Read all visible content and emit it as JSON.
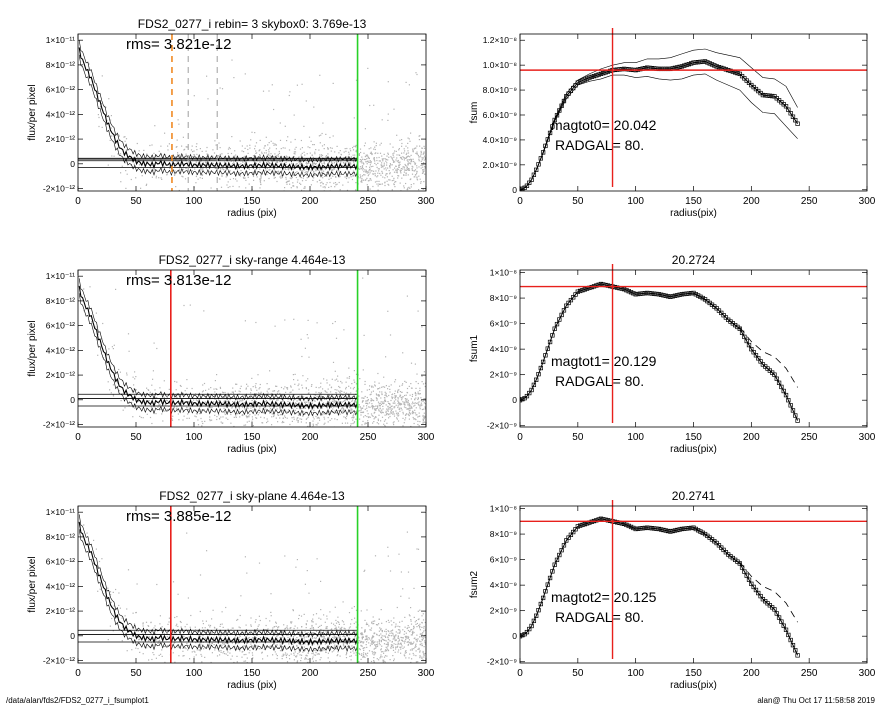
{
  "footer": {
    "left": "/data/alan/fds2/FDS2_0277_i_fsumplot1",
    "right": "alan@  Thu Oct 17 11:58:58 2019"
  },
  "colors": {
    "red": "#e8201c",
    "green": "#28d228",
    "orange": "#f08a24",
    "scatter": "#b4b4b4",
    "line": "#000000"
  },
  "chart_data": [
    {
      "type": "scatter",
      "title": "FDS2_0277_i rebin= 3    skybox0:  3.769e-13",
      "annotation": "rms= 3.821e-12",
      "xlabel": "radius (pix)",
      "ylabel": "flux/per pixel",
      "xlim": [
        0,
        300
      ],
      "ylim": [
        -2.2e-12,
        1.05e-11
      ],
      "xticks": [
        0,
        50,
        100,
        150,
        200,
        250,
        300
      ],
      "xtick_labels": [
        "0",
        "50",
        "100",
        "150",
        "200",
        "250",
        "300"
      ],
      "yticks": [
        -2e-12,
        0,
        2e-12,
        4e-12,
        6e-12,
        8e-12,
        1e-11
      ],
      "ytick_labels": [
        "-2×10⁻¹²",
        "0",
        "2×10⁻¹²",
        "4×10⁻¹²",
        "6×10⁻¹²",
        "8×10⁻¹²",
        "1×10⁻¹¹"
      ],
      "profile": {
        "x": [
          1,
          3,
          5,
          8,
          11,
          14,
          17,
          20,
          23,
          26,
          29,
          32,
          35,
          38,
          41,
          44,
          47,
          50,
          53,
          56,
          60,
          65,
          70,
          80,
          90,
          100,
          120,
          140,
          160,
          180,
          200,
          220,
          240
        ],
        "y": [
          9.2e-12,
          8.6e-12,
          8.1e-12,
          7.5e-12,
          7e-12,
          6.2e-12,
          5.4e-12,
          4.7e-12,
          3.9e-12,
          3.2e-12,
          2.6e-12,
          2e-12,
          1.5e-12,
          1.1e-12,
          8e-13,
          6e-13,
          4e-13,
          2e-13,
          1e-13,
          0,
          0,
          -1e-13,
          1e-13,
          -1e-13,
          0,
          -1e-13,
          -1e-13,
          -2e-13,
          -1e-13,
          -2e-13,
          -3e-13,
          -2e-13,
          -2e-13
        ]
      },
      "hlines": [
        4.5e-13,
        3.769e-13,
        2.5e-13,
        -3e-13
      ],
      "vlines": [
        {
          "x": 81,
          "color": "orange",
          "style": "dashed"
        },
        {
          "x": 95,
          "color": "gray",
          "style": "dashed"
        },
        {
          "x": 120,
          "color": "gray",
          "style": "dashed"
        },
        {
          "x": 241,
          "color": "green",
          "style": "solid"
        }
      ]
    },
    {
      "type": "line",
      "title": "",
      "annotation": [
        "magtot0=  20.042",
        "RADGAL=     80."
      ],
      "xlabel": "radius(pix)",
      "ylabel": "fsum",
      "xlim": [
        0,
        300
      ],
      "ylim": [
        -1e-10,
        1.25e-08
      ],
      "xticks": [
        0,
        50,
        100,
        150,
        200,
        250,
        300
      ],
      "xtick_labels": [
        "0",
        "50",
        "100",
        "150",
        "200",
        "250",
        "300"
      ],
      "yticks": [
        0,
        2e-09,
        4e-09,
        6e-09,
        8e-09,
        1e-08,
        1.2e-08
      ],
      "ytick_labels": [
        "0",
        "2.0×10⁻⁹",
        "4.0×10⁻⁹",
        "6.0×10⁻⁹",
        "8.0×10⁻⁹",
        "1.0×10⁻⁸",
        "1.2×10⁻⁸"
      ],
      "series": [
        {
          "style": "markers",
          "x": [
            0,
            5,
            10,
            15,
            20,
            25,
            30,
            40,
            50,
            60,
            70,
            80,
            90,
            100,
            110,
            120,
            130,
            140,
            150,
            160,
            170,
            180,
            190,
            200,
            210,
            220,
            230,
            240
          ],
          "y": [
            0,
            2e-10,
            8e-10,
            1.8e-09,
            3e-09,
            4.3e-09,
            5.6e-09,
            7.5e-09,
            8.6e-09,
            9e-09,
            9.3e-09,
            9.6e-09,
            9.7e-09,
            9.6e-09,
            9.8e-09,
            9.7e-09,
            9.7e-09,
            9.9e-09,
            1.02e-08,
            1.03e-08,
            9.9e-09,
            9.6e-09,
            9.3e-09,
            8.4e-09,
            7.6e-09,
            7.5e-09,
            6.7e-09,
            5.3e-09
          ]
        },
        {
          "style": "thin",
          "x": [
            0,
            5,
            10,
            15,
            20,
            25,
            30,
            40,
            50,
            60,
            70,
            80,
            90,
            100,
            110,
            120,
            130,
            140,
            150,
            160,
            170,
            180,
            190,
            200,
            210,
            220,
            230,
            240
          ],
          "y": [
            0,
            2e-10,
            8e-10,
            1.8e-09,
            3e-09,
            4.4e-09,
            5.7e-09,
            7.7e-09,
            8.8e-09,
            9.3e-09,
            9.7e-09,
            1e-08,
            1.02e-08,
            1.02e-08,
            1.05e-08,
            1.05e-08,
            1.06e-08,
            1.09e-08,
            1.12e-08,
            1.13e-08,
            1.1e-08,
            1.08e-08,
            1.06e-08,
            9.8e-09,
            9e-09,
            8.9e-09,
            8.3e-09,
            6.6e-09
          ]
        },
        {
          "style": "thin",
          "x": [
            0,
            5,
            10,
            15,
            20,
            25,
            30,
            40,
            50,
            60,
            70,
            80,
            90,
            100,
            110,
            120,
            130,
            140,
            150,
            160,
            170,
            180,
            190,
            200,
            210,
            220,
            230,
            240
          ],
          "y": [
            0,
            2e-10,
            8e-10,
            1.8e-09,
            2.9e-09,
            4.2e-09,
            5.5e-09,
            7.3e-09,
            8.4e-09,
            8.7e-09,
            8.9e-09,
            9.2e-09,
            9.2e-09,
            9e-09,
            9.1e-09,
            8.9e-09,
            8.8e-09,
            8.9e-09,
            9.2e-09,
            9.3e-09,
            8.8e-09,
            8.4e-09,
            8e-09,
            7e-09,
            6.2e-09,
            6.1e-09,
            5.1e-09,
            4.1e-09
          ]
        }
      ],
      "hline": 9.6e-09,
      "vline": 80
    },
    {
      "type": "scatter",
      "title": "FDS2_0277_i sky-range  4.464e-13",
      "annotation": "rms= 3.813e-12",
      "xlabel": "radius (pix)",
      "ylabel": "flux/per pixel",
      "xlim": [
        0,
        300
      ],
      "ylim": [
        -2.2e-12,
        1.05e-11
      ],
      "xticks": [
        0,
        50,
        100,
        150,
        200,
        250,
        300
      ],
      "xtick_labels": [
        "0",
        "50",
        "100",
        "150",
        "200",
        "250",
        "300"
      ],
      "yticks": [
        -2e-12,
        0,
        2e-12,
        4e-12,
        6e-12,
        8e-12,
        1e-11
      ],
      "ytick_labels": [
        "-2×10⁻¹²",
        "0",
        "2×10⁻¹²",
        "4×10⁻¹²",
        "6×10⁻¹²",
        "8×10⁻¹²",
        "1×10⁻¹¹"
      ],
      "profile": {
        "x": [
          1,
          3,
          5,
          8,
          11,
          14,
          17,
          20,
          23,
          26,
          29,
          32,
          35,
          38,
          41,
          44,
          47,
          50,
          53,
          56,
          60,
          65,
          70,
          80,
          90,
          100,
          120,
          140,
          160,
          180,
          200,
          220,
          240
        ],
        "y": [
          9e-12,
          8.4e-12,
          7.9e-12,
          7.3e-12,
          6.8e-12,
          6e-12,
          5.2e-12,
          4.5e-12,
          3.7e-12,
          3e-12,
          2.4e-12,
          1.8e-12,
          1.3e-12,
          9e-13,
          6e-13,
          4e-13,
          2e-13,
          0,
          -1e-13,
          -2e-13,
          -2e-13,
          -3e-13,
          -1e-13,
          -3e-13,
          -2e-13,
          -3e-13,
          -3e-13,
          -4e-13,
          -3e-13,
          -4e-13,
          -5e-13,
          -4e-13,
          -4e-13
        ]
      },
      "hlines": [
        4.464e-13,
        1e-13,
        -5e-13
      ],
      "vlines": [
        {
          "x": 80,
          "color": "red",
          "style": "solid"
        },
        {
          "x": 241,
          "color": "green",
          "style": "solid"
        }
      ]
    },
    {
      "type": "line",
      "title": "20.2724",
      "annotation": [
        "magtot1=  20.129",
        "RADGAL=     80."
      ],
      "xlabel": "radius(pix)",
      "ylabel": "fsum1",
      "xlim": [
        0,
        300
      ],
      "ylim": [
        -2.1e-09,
        1.02e-08
      ],
      "xticks": [
        0,
        50,
        100,
        150,
        200,
        250,
        300
      ],
      "xtick_labels": [
        "0",
        "50",
        "100",
        "150",
        "200",
        "250",
        "300"
      ],
      "yticks": [
        -2e-09,
        0,
        2e-09,
        4e-09,
        6e-09,
        8e-09,
        1e-08
      ],
      "ytick_labels": [
        "-2×10⁻⁹",
        "0",
        "2×10⁻⁹",
        "4×10⁻⁹",
        "6×10⁻⁹",
        "8×10⁻⁹",
        "1×10⁻⁸"
      ],
      "series": [
        {
          "style": "markers",
          "x": [
            0,
            5,
            10,
            15,
            20,
            25,
            30,
            40,
            50,
            60,
            70,
            80,
            90,
            100,
            110,
            120,
            130,
            140,
            150,
            160,
            170,
            180,
            190,
            200,
            210,
            220,
            230,
            240
          ],
          "y": [
            0,
            2e-10,
            8e-10,
            1.8e-09,
            3e-09,
            4.3e-09,
            5.6e-09,
            7.4e-09,
            8.5e-09,
            8.8e-09,
            9.1e-09,
            8.9e-09,
            8.7e-09,
            8.3e-09,
            8.4e-09,
            8.3e-09,
            8.1e-09,
            8.3e-09,
            8.4e-09,
            7.9e-09,
            7.2e-09,
            6.3e-09,
            5.6e-09,
            4e-09,
            2.8e-09,
            2e-09,
            4e-10,
            -1.6e-09
          ]
        },
        {
          "style": "dashed",
          "x": [
            190,
            200,
            210,
            220,
            230,
            240
          ],
          "y": [
            5.7e-09,
            4.6e-09,
            3.8e-09,
            3.4e-09,
            2.5e-09,
            1e-09
          ]
        }
      ],
      "hline": 8.9e-09,
      "vline": 80
    },
    {
      "type": "scatter",
      "title": "FDS2_0277_i sky-plane  4.464e-13",
      "annotation": "rms= 3.885e-12",
      "xlabel": "radius (pix)",
      "ylabel": "flux/per pixel",
      "xlim": [
        0,
        300
      ],
      "ylim": [
        -2.2e-12,
        1.05e-11
      ],
      "xticks": [
        0,
        50,
        100,
        150,
        200,
        250,
        300
      ],
      "xtick_labels": [
        "0",
        "50",
        "100",
        "150",
        "200",
        "250",
        "300"
      ],
      "yticks": [
        -2e-12,
        0,
        2e-12,
        4e-12,
        6e-12,
        8e-12,
        1e-11
      ],
      "ytick_labels": [
        "-2×10⁻¹²",
        "0",
        "2×10⁻¹²",
        "4×10⁻¹²",
        "6×10⁻¹²",
        "8×10⁻¹²",
        "1×10⁻¹¹"
      ],
      "profile": {
        "x": [
          1,
          3,
          5,
          8,
          11,
          14,
          17,
          20,
          23,
          26,
          29,
          32,
          35,
          38,
          41,
          44,
          47,
          50,
          53,
          56,
          60,
          65,
          70,
          80,
          90,
          100,
          120,
          140,
          160,
          180,
          200,
          220,
          240
        ],
        "y": [
          9e-12,
          8.4e-12,
          7.9e-12,
          7.3e-12,
          6.8e-12,
          6e-12,
          5.2e-12,
          4.5e-12,
          3.7e-12,
          3e-12,
          2.4e-12,
          1.8e-12,
          1.3e-12,
          9e-13,
          6e-13,
          4e-13,
          2e-13,
          0,
          -1e-13,
          -2e-13,
          -2e-13,
          -3e-13,
          -1e-13,
          -3e-13,
          -2e-13,
          -3e-13,
          -3e-13,
          -4e-13,
          -3e-13,
          -4e-13,
          -5e-13,
          -4e-13,
          -4e-13
        ]
      },
      "hlines": [
        4.464e-13,
        1e-13,
        -5e-13
      ],
      "vlines": [
        {
          "x": 80,
          "color": "red",
          "style": "solid"
        },
        {
          "x": 241,
          "color": "green",
          "style": "solid"
        }
      ]
    },
    {
      "type": "line",
      "title": "20.2741",
      "annotation": [
        "magtot2=  20.125",
        "RADGAL=     80."
      ],
      "xlabel": "radius(pix)",
      "ylabel": "fsum2",
      "xlim": [
        0,
        300
      ],
      "ylim": [
        -2.1e-09,
        1.02e-08
      ],
      "xticks": [
        0,
        50,
        100,
        150,
        200,
        250,
        300
      ],
      "xtick_labels": [
        "0",
        "50",
        "100",
        "150",
        "200",
        "250",
        "300"
      ],
      "yticks": [
        -2e-09,
        0,
        2e-09,
        4e-09,
        6e-09,
        8e-09,
        1e-08
      ],
      "ytick_labels": [
        "-2×10⁻⁹",
        "0",
        "2×10⁻⁹",
        "4×10⁻⁹",
        "6×10⁻⁹",
        "8×10⁻⁹",
        "1×10⁻⁸"
      ],
      "series": [
        {
          "style": "markers",
          "x": [
            0,
            5,
            10,
            15,
            20,
            25,
            30,
            40,
            50,
            60,
            70,
            80,
            90,
            100,
            110,
            120,
            130,
            140,
            150,
            160,
            170,
            180,
            190,
            200,
            210,
            220,
            230,
            240
          ],
          "y": [
            0,
            2e-10,
            8e-10,
            1.8e-09,
            3e-09,
            4.3e-09,
            5.6e-09,
            7.5e-09,
            8.6e-09,
            8.9e-09,
            9.2e-09,
            9e-09,
            8.8e-09,
            8.4e-09,
            8.5e-09,
            8.4e-09,
            8.2e-09,
            8.4e-09,
            8.5e-09,
            8e-09,
            7.3e-09,
            6.4e-09,
            5.7e-09,
            4.1e-09,
            2.9e-09,
            2.1e-09,
            5e-10,
            -1.5e-09
          ]
        },
        {
          "style": "dashed",
          "x": [
            190,
            200,
            210,
            220,
            230,
            240
          ],
          "y": [
            5.8e-09,
            4.7e-09,
            3.9e-09,
            3.5e-09,
            2.6e-09,
            1.1e-09
          ]
        }
      ],
      "hline": 9e-09,
      "vline": 80
    }
  ]
}
